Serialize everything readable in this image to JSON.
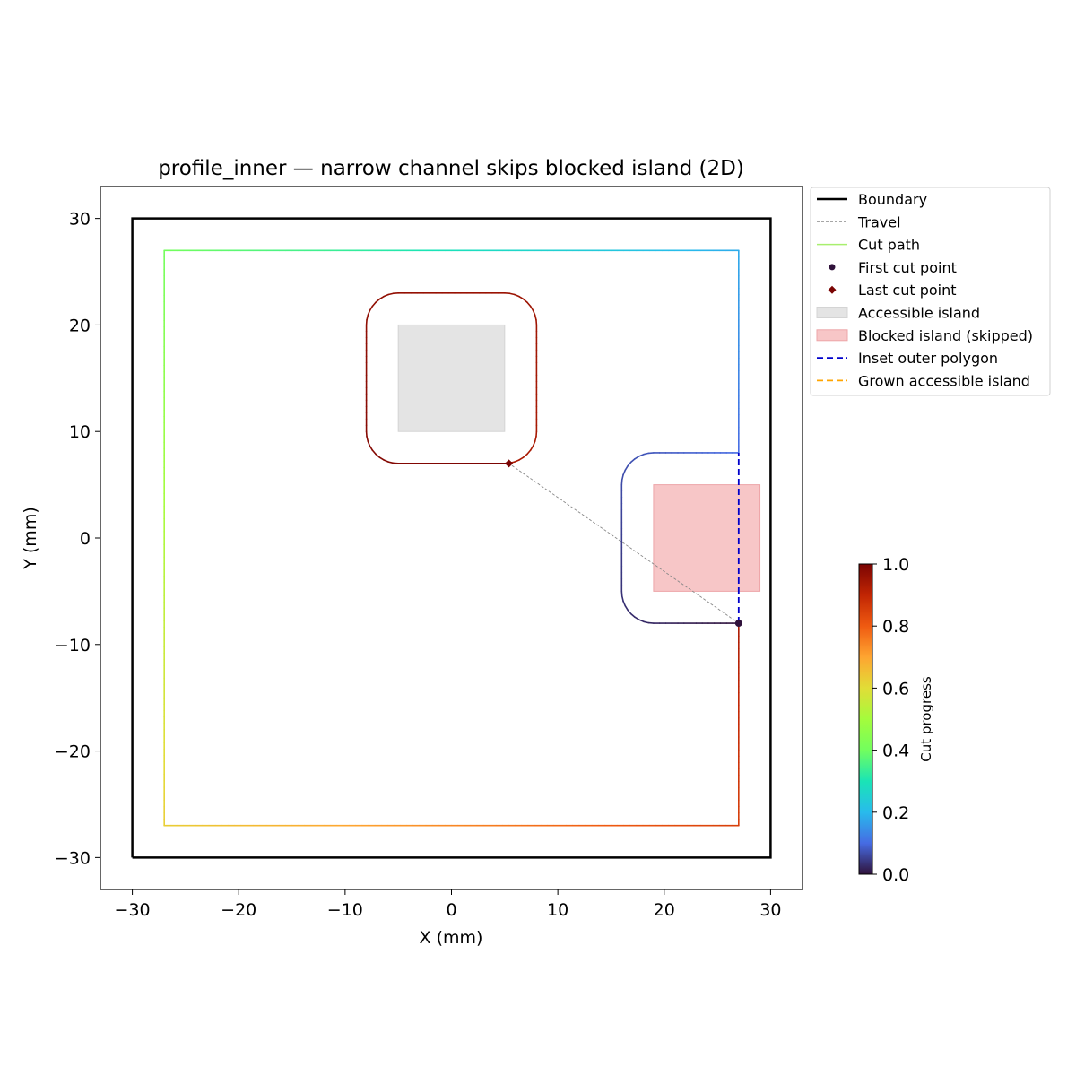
{
  "chart_data": {
    "type": "line",
    "title": "profile_inner — narrow channel skips blocked island (2D)",
    "xlabel": "X (mm)",
    "ylabel": "Y (mm)",
    "xlim": [
      -33,
      33
    ],
    "ylim": [
      -33,
      33
    ],
    "xticks": [
      -30,
      -20,
      -10,
      0,
      10,
      20,
      30
    ],
    "yticks": [
      -30,
      -20,
      -10,
      0,
      10,
      20,
      30
    ],
    "x_tick_labels": [
      "−30",
      "−20",
      "−10",
      "0",
      "10",
      "20",
      "30"
    ],
    "y_tick_labels": [
      "−30",
      "−20",
      "−10",
      "0",
      "10",
      "20",
      "30"
    ],
    "grid": false,
    "legend_position": "outside-upper-right",
    "boundary": {
      "name": "Boundary",
      "color": "#000000",
      "points": [
        [
          -30,
          -30
        ],
        [
          30,
          -30
        ],
        [
          30,
          30
        ],
        [
          -30,
          30
        ],
        [
          -30,
          -30
        ]
      ]
    },
    "accessible_island": {
      "name": "Accessible island",
      "color": "#e4e4e4",
      "x": [
        -5,
        5
      ],
      "y": [
        10,
        20
      ]
    },
    "blocked_island": {
      "name": "Blocked island (skipped)",
      "color": "#f7c6c7",
      "x": [
        19,
        29
      ],
      "y": [
        -5,
        5
      ]
    },
    "inset_outer_polygon": {
      "name": "Inset outer polygon",
      "color": "#0000cc",
      "points": [
        [
          27,
          -8
        ],
        [
          27,
          8
        ]
      ]
    },
    "grown_accessible_island": {
      "name": "Grown accessible island",
      "color": "#ffa500"
    },
    "travel": {
      "name": "Travel",
      "color": "#888888",
      "points": [
        [
          27,
          -8
        ],
        [
          5.4,
          7
        ]
      ]
    },
    "cut_path": {
      "name": "Cut path",
      "legend_color": "#a8ef6e",
      "blocked_pocket": {
        "x_min": 16,
        "x_max": 27,
        "y_min": -8,
        "y_max": 8,
        "corner_radius": 3
      },
      "outer_frame": {
        "x_min": -27,
        "x_max": 27,
        "y_min": -27,
        "y_max": 27
      },
      "island_loop": {
        "x_min": -8,
        "x_max": 8,
        "y_min": 7,
        "y_max": 23,
        "corner_radius": 3
      },
      "progress_breaks": [
        0.0,
        0.1,
        0.93,
        1.0
      ]
    },
    "first_cut_point": {
      "name": "First cut point",
      "x": 27,
      "y": -8,
      "color": "#30123b"
    },
    "last_cut_point": {
      "name": "Last cut point",
      "x": 5.4,
      "y": 7,
      "color": "#7a0403"
    },
    "colorbar": {
      "label": "Cut progress",
      "range": [
        0.0,
        1.0
      ],
      "ticks": [
        0.0,
        0.2,
        0.4,
        0.6,
        0.8,
        1.0
      ],
      "tick_labels": [
        "0.0",
        "0.2",
        "0.4",
        "0.6",
        "0.8",
        "1.0"
      ],
      "colormap": "turbo"
    },
    "legend": [
      {
        "label": "Boundary",
        "kind": "line",
        "color": "#000000",
        "dash": "",
        "width": 2.5
      },
      {
        "label": "Travel",
        "kind": "line",
        "color": "#888888",
        "dash": "3,2",
        "width": 1
      },
      {
        "label": "Cut path",
        "kind": "line",
        "color": "#a8ef6e",
        "dash": "",
        "width": 1.5
      },
      {
        "label": "First cut point",
        "kind": "circle",
        "color": "#30123b"
      },
      {
        "label": "Last cut point",
        "kind": "diamond",
        "color": "#7a0403"
      },
      {
        "label": "Accessible island",
        "kind": "patch",
        "color": "#e4e4e4",
        "stroke": "#d4d4d4"
      },
      {
        "label": "Blocked island (skipped)",
        "kind": "patch",
        "color": "#f7c6c7",
        "stroke": "#eda5a8"
      },
      {
        "label": "Inset outer polygon",
        "kind": "line",
        "color": "#0000cc",
        "dash": "7,4",
        "width": 1.8
      },
      {
        "label": "Grown accessible island",
        "kind": "line",
        "color": "#ffa500",
        "dash": "7,4",
        "width": 1.8
      }
    ]
  }
}
